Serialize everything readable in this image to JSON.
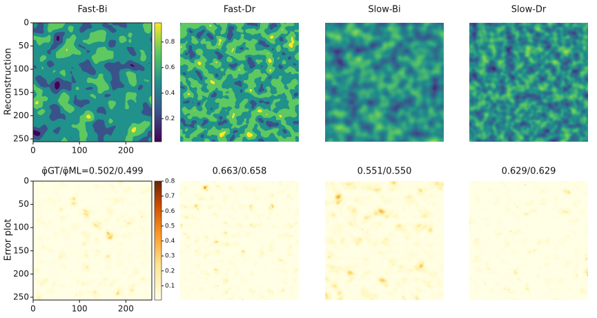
{
  "panels": {
    "columns": [
      "Fast-Bi",
      "Fast-Dr",
      "Slow-Bi",
      "Slow-Dr"
    ],
    "row_labels": [
      "Reconstruction",
      "Error plot"
    ],
    "error_titles": [
      "φ̄GT/φ̄ML=0.502/0.499",
      "0.663/0.658",
      "0.551/0.550",
      "0.629/0.629"
    ],
    "axis": {
      "xlim": [
        0,
        256
      ],
      "ylim": [
        0,
        256
      ],
      "xticks": [
        0,
        100,
        200
      ],
      "yticks": [
        0,
        50,
        100,
        150,
        200,
        250
      ]
    },
    "colorbars": [
      {
        "ylim": [
          0.02,
          0.95
        ],
        "yticks": [
          0.2,
          0.4,
          0.6,
          0.8
        ]
      },
      {
        "ylim": [
          0.005,
          0.8
        ],
        "yticks": [
          0.1,
          0.2,
          0.3,
          0.4,
          0.5,
          0.6,
          0.7,
          0.8
        ]
      }
    ]
  }
}
